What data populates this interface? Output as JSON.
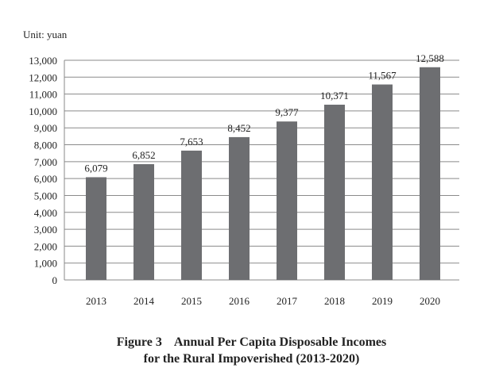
{
  "chart_data": {
    "type": "bar",
    "unit_label": "Unit: yuan",
    "categories": [
      "2013",
      "2014",
      "2015",
      "2016",
      "2017",
      "2018",
      "2019",
      "2020"
    ],
    "values": [
      6079,
      6852,
      7653,
      8452,
      9377,
      10371,
      11567,
      12588
    ],
    "data_labels": [
      "6,079",
      "6,852",
      "7,653",
      "8,452",
      "9,377",
      "10,371",
      "11,567",
      "12,588"
    ],
    "yticks": [
      "0",
      "1,000",
      "2,000",
      "3,000",
      "4,000",
      "5,000",
      "6,000",
      "7,000",
      "8,000",
      "9,000",
      "10,000",
      "11,000",
      "12,000",
      "13,000"
    ],
    "ylim": [
      0,
      13000
    ],
    "grid": true,
    "bar_color": "#6d6e71",
    "title_line1": "Figure 3    Annual Per Capita Disposable Incomes",
    "title_line2": "for the Rural Impoverished (2013-2020)"
  }
}
